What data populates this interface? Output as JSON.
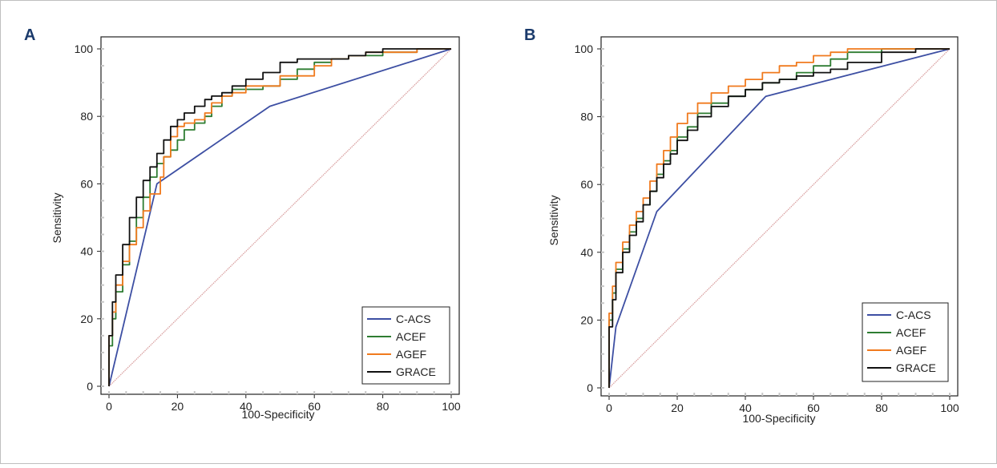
{
  "figure": {
    "border_color": "#bfbfbf"
  },
  "chart_data": [
    {
      "type": "line",
      "panel_label": "A",
      "xlabel": "100-Specificity",
      "ylabel": "Sensitivity",
      "xlim": [
        0,
        100
      ],
      "ylim": [
        0,
        100
      ],
      "xticks": [
        0,
        20,
        40,
        60,
        80,
        100
      ],
      "yticks": [
        0,
        20,
        40,
        60,
        80,
        100
      ],
      "legend_position": "bottom-right",
      "reference_line": {
        "color": "#d9a0a0",
        "x": [
          0,
          100
        ],
        "y": [
          0,
          100
        ]
      },
      "series": [
        {
          "name": "C-ACS",
          "color": "#3d4fa3",
          "x": [
            0,
            14,
            47,
            100
          ],
          "y": [
            0,
            60,
            83,
            100
          ]
        },
        {
          "name": "ACEF",
          "color": "#2e7d32",
          "x": [
            0,
            1,
            2,
            4,
            6,
            8,
            10,
            12,
            14,
            16,
            18,
            20,
            22,
            25,
            28,
            30,
            33,
            36,
            40,
            45,
            50,
            55,
            60,
            65,
            70,
            75,
            80,
            90,
            100
          ],
          "y": [
            0,
            12,
            20,
            28,
            36,
            43,
            50,
            56,
            62,
            66,
            68,
            70,
            73,
            76,
            78,
            80,
            83,
            86,
            88,
            88,
            89,
            91,
            94,
            96,
            97,
            98,
            98,
            99,
            100
          ]
        },
        {
          "name": "AGEF",
          "color": "#f07a1e",
          "x": [
            0,
            1,
            2,
            4,
            6,
            8,
            10,
            12,
            14,
            15,
            16,
            18,
            20,
            22,
            25,
            28,
            30,
            33,
            36,
            40,
            45,
            50,
            55,
            60,
            65,
            70,
            75,
            80,
            90,
            100
          ],
          "y": [
            0,
            15,
            22,
            30,
            37,
            42,
            47,
            52,
            57,
            57,
            62,
            68,
            74,
            77,
            78,
            79,
            81,
            84,
            86,
            87,
            89,
            89,
            92,
            92,
            95,
            97,
            98,
            99,
            99,
            100
          ]
        },
        {
          "name": "GRACE",
          "color": "#111111",
          "x": [
            0,
            1,
            2,
            4,
            6,
            8,
            10,
            12,
            14,
            16,
            18,
            20,
            22,
            25,
            28,
            30,
            33,
            36,
            40,
            45,
            50,
            55,
            60,
            65,
            70,
            75,
            80,
            90,
            100
          ],
          "y": [
            0,
            15,
            25,
            33,
            42,
            50,
            56,
            61,
            65,
            69,
            73,
            77,
            79,
            81,
            83,
            85,
            86,
            87,
            89,
            91,
            93,
            96,
            97,
            97,
            97,
            98,
            99,
            100,
            100
          ]
        }
      ]
    },
    {
      "type": "line",
      "panel_label": "B",
      "xlabel": "100-Specificity",
      "ylabel": "Sensitivity",
      "xlim": [
        0,
        100
      ],
      "ylim": [
        0,
        100
      ],
      "xticks": [
        0,
        20,
        40,
        60,
        80,
        100
      ],
      "yticks": [
        0,
        20,
        40,
        60,
        80,
        100
      ],
      "legend_position": "bottom-right",
      "reference_line": {
        "color": "#d9a0a0",
        "x": [
          0,
          100
        ],
        "y": [
          0,
          100
        ]
      },
      "series": [
        {
          "name": "C-ACS",
          "color": "#3d4fa3",
          "x": [
            0,
            2,
            14,
            46,
            100
          ],
          "y": [
            0,
            18,
            52,
            86,
            100
          ]
        },
        {
          "name": "ACEF",
          "color": "#2e7d32",
          "x": [
            0,
            1,
            2,
            4,
            6,
            8,
            10,
            12,
            14,
            16,
            18,
            20,
            23,
            26,
            30,
            35,
            40,
            45,
            50,
            55,
            60,
            65,
            70,
            80,
            90,
            100
          ],
          "y": [
            0,
            20,
            28,
            35,
            41,
            46,
            50,
            54,
            58,
            63,
            67,
            70,
            74,
            77,
            81,
            84,
            86,
            88,
            90,
            91,
            93,
            95,
            97,
            99,
            100,
            100
          ]
        },
        {
          "name": "AGEF",
          "color": "#f07a1e",
          "x": [
            0,
            1,
            2,
            4,
            6,
            8,
            10,
            12,
            14,
            16,
            18,
            20,
            23,
            26,
            30,
            35,
            40,
            45,
            50,
            55,
            60,
            65,
            70,
            80,
            90,
            100
          ],
          "y": [
            0,
            22,
            30,
            37,
            43,
            48,
            52,
            56,
            61,
            66,
            70,
            74,
            78,
            81,
            84,
            87,
            89,
            91,
            93,
            95,
            96,
            98,
            99,
            100,
            100,
            100
          ]
        },
        {
          "name": "GRACE",
          "color": "#111111",
          "x": [
            0,
            1,
            2,
            4,
            6,
            8,
            10,
            12,
            14,
            16,
            18,
            20,
            23,
            26,
            30,
            35,
            40,
            45,
            50,
            55,
            60,
            65,
            70,
            80,
            90,
            100
          ],
          "y": [
            0,
            18,
            26,
            34,
            40,
            45,
            49,
            54,
            58,
            62,
            66,
            69,
            73,
            76,
            80,
            83,
            86,
            88,
            90,
            91,
            92,
            93,
            94,
            96,
            99,
            100
          ]
        }
      ]
    }
  ]
}
